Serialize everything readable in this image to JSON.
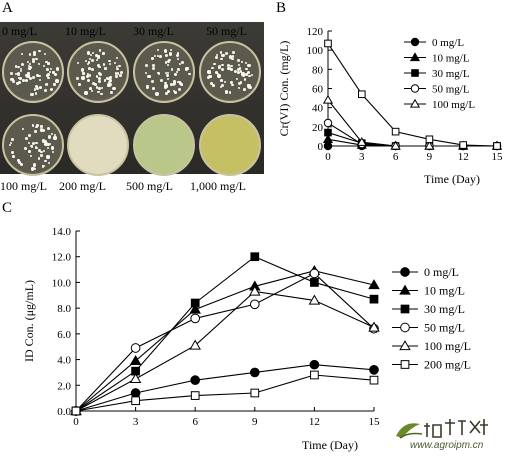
{
  "panel_a": {
    "letter": "A",
    "concentrations": [
      "0 mg/L",
      "10 mg/L",
      "30 mg/L",
      "50 mg/L",
      "100 mg/L",
      "200 mg/L",
      "500 mg/L",
      "1,000 mg/L"
    ]
  },
  "chart_data": [
    {
      "type": "line",
      "panel": "B",
      "xlabel": "Time (Day)",
      "ylabel": "Cr(VI) Con. (mg/L)",
      "xlim": [
        0,
        15
      ],
      "ylim": [
        0,
        120
      ],
      "xticks": [
        0,
        3,
        6,
        9,
        12,
        15
      ],
      "yticks": [
        0,
        20,
        40,
        60,
        80,
        100,
        120
      ],
      "x": [
        0,
        3,
        6,
        9,
        12,
        15
      ],
      "grid": false,
      "legend_position": "right",
      "series": [
        {
          "name": "0 mg/L",
          "marker": "filled-circle",
          "values": [
            0,
            0,
            0,
            0,
            0,
            0
          ]
        },
        {
          "name": "10 mg/L",
          "marker": "filled-triangle",
          "values": [
            7,
            1,
            0,
            0,
            0,
            0
          ]
        },
        {
          "name": "30 mg/L",
          "marker": "filled-square",
          "values": [
            14,
            3,
            0,
            0,
            0,
            0
          ]
        },
        {
          "name": "50 mg/L",
          "marker": "open-circle",
          "values": [
            24,
            2,
            0,
            0,
            0,
            0
          ]
        },
        {
          "name": "100 mg/L",
          "marker": "open-triangle",
          "values": [
            48,
            4,
            0,
            0,
            0,
            0
          ]
        },
        {
          "name": "",
          "marker": "open-square",
          "values": [
            107,
            54,
            15,
            7,
            1,
            0
          ]
        }
      ]
    },
    {
      "type": "line",
      "panel": "C",
      "xlabel": "Time (Day)",
      "ylabel": "ID Con. (μg/mL)",
      "xlim": [
        0,
        15
      ],
      "ylim": [
        0,
        14
      ],
      "xticks": [
        0,
        3,
        6,
        9,
        12,
        15
      ],
      "yticks": [
        "0.0",
        "2.0",
        "4.0",
        "6.0",
        "8.0",
        "10.0",
        "12.0",
        "14.0"
      ],
      "x": [
        0,
        3,
        6,
        9,
        12,
        15
      ],
      "grid": false,
      "legend_position": "right",
      "series": [
        {
          "name": "0 mg/L",
          "marker": "filled-circle",
          "values": [
            0,
            1.4,
            2.4,
            3.0,
            3.6,
            3.2
          ]
        },
        {
          "name": "10 mg/L",
          "marker": "filled-triangle",
          "values": [
            0,
            3.9,
            7.9,
            9.7,
            10.9,
            9.8
          ]
        },
        {
          "name": "30 mg/L",
          "marker": "filled-square",
          "values": [
            0,
            3.1,
            8.4,
            12.0,
            10.0,
            8.7
          ]
        },
        {
          "name": "50 mg/L",
          "marker": "open-circle",
          "values": [
            0,
            4.9,
            7.2,
            8.3,
            10.7,
            6.4
          ]
        },
        {
          "name": "100 mg/L",
          "marker": "open-triangle",
          "values": [
            0,
            2.5,
            5.1,
            9.3,
            8.6,
            6.5
          ]
        },
        {
          "name": "200 mg/L",
          "marker": "open-square",
          "values": [
            0,
            0.8,
            1.2,
            1.4,
            2.8,
            2.4
          ]
        }
      ]
    }
  ],
  "panel_letters": {
    "a": "A",
    "b": "B",
    "c": "C"
  },
  "watermark": {
    "url": "www.agroipm.cn"
  },
  "colors": {
    "dish_rim": "#c9c3a2",
    "dish_agar": "#e1dcc0",
    "colony": "#f7f7f2",
    "dish_green": "#b9c88a",
    "dish_yellow": "#c4c063"
  }
}
